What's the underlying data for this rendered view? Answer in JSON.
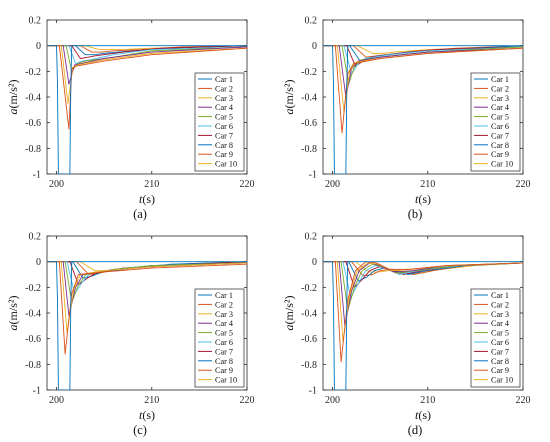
{
  "panels": [
    {
      "label": "(a)",
      "variant": "a"
    },
    {
      "label": "(b)",
      "variant": "b"
    },
    {
      "label": "(c)",
      "variant": "c"
    },
    {
      "label": "(d)",
      "variant": "d"
    }
  ],
  "chart_data": [
    {
      "type": "line",
      "panel": "(a)",
      "xlabel": "t(s)",
      "ylabel": "a(m/s²)",
      "xlim": [
        199,
        220
      ],
      "ylim": [
        -1,
        0.2
      ],
      "xticks": [
        200,
        210,
        220
      ],
      "yticks": [
        0.2,
        0,
        -0.2,
        -0.4,
        -0.6,
        -0.8,
        -1
      ],
      "grid": false,
      "legend_position": "bottom-right",
      "series": [
        {
          "name": "Car 1",
          "x": [
            199,
            200,
            200.1,
            200.2,
            201.4,
            201.5,
            201.6,
            220
          ],
          "y": [
            0,
            0,
            -0.3,
            -1,
            -1,
            -0.3,
            0,
            0
          ]
        },
        {
          "name": "Car 2",
          "x": [
            199,
            200.3,
            201.3,
            201.6,
            202,
            205,
            210,
            220
          ],
          "y": [
            0,
            0,
            -0.65,
            -0.18,
            -0.16,
            -0.12,
            -0.07,
            -0.02
          ]
        },
        {
          "name": "Car 3",
          "x": [
            199,
            200.5,
            201.2,
            201.7,
            202.2,
            205,
            210,
            220
          ],
          "y": [
            0,
            0,
            -0.45,
            -0.17,
            -0.15,
            -0.11,
            -0.06,
            -0.02
          ]
        },
        {
          "name": "Car 4",
          "x": [
            199,
            200.7,
            201.3,
            201.9,
            202.5,
            205,
            210,
            220
          ],
          "y": [
            0,
            0,
            -0.3,
            -0.15,
            -0.14,
            -0.1,
            -0.05,
            -0.01
          ]
        },
        {
          "name": "Car 5",
          "x": [
            199,
            201,
            201.6,
            202.2,
            203,
            206,
            210,
            220
          ],
          "y": [
            0,
            0,
            -0.2,
            -0.14,
            -0.12,
            -0.09,
            -0.04,
            -0.01
          ]
        },
        {
          "name": "Car 6",
          "x": [
            199,
            201.3,
            202,
            202.7,
            203.5,
            206,
            210,
            220
          ],
          "y": [
            0,
            0,
            -0.14,
            -0.12,
            -0.11,
            -0.07,
            -0.03,
            -0.01
          ]
        },
        {
          "name": "Car 7",
          "x": [
            199,
            201.6,
            202.5,
            203.3,
            204,
            207,
            211,
            220
          ],
          "y": [
            0,
            0,
            -0.1,
            -0.09,
            -0.08,
            -0.05,
            -0.02,
            0
          ]
        },
        {
          "name": "Car 8",
          "x": [
            199,
            202,
            203,
            204,
            205,
            208,
            212,
            220
          ],
          "y": [
            0,
            0,
            -0.07,
            -0.07,
            -0.06,
            -0.04,
            -0.02,
            0
          ]
        },
        {
          "name": "Car 9",
          "x": [
            199,
            202.5,
            203.7,
            204.7,
            206,
            209,
            213,
            220
          ],
          "y": [
            0,
            0,
            -0.05,
            -0.05,
            -0.04,
            -0.03,
            -0.01,
            0
          ]
        },
        {
          "name": "Car 10",
          "x": [
            199,
            203,
            204.5,
            205.5,
            207,
            210,
            214,
            220
          ],
          "y": [
            0,
            0,
            -0.03,
            -0.03,
            -0.03,
            -0.02,
            -0.01,
            0
          ]
        }
      ]
    },
    {
      "type": "line",
      "panel": "(b)",
      "xlabel": "t(s)",
      "ylabel": "a(m/s²)",
      "xlim": [
        199,
        220
      ],
      "ylim": [
        -1,
        0.2
      ],
      "xticks": [
        200,
        210,
        220
      ],
      "yticks": [
        0.2,
        0,
        -0.2,
        -0.4,
        -0.6,
        -0.8,
        -1
      ],
      "grid": false,
      "legend_position": "bottom-right",
      "series": [
        {
          "name": "Car 1",
          "x": [
            199,
            200,
            200.1,
            200.2,
            201.4,
            201.5,
            201.6,
            220
          ],
          "y": [
            0,
            0,
            -0.3,
            -1,
            -1,
            -0.3,
            0,
            0
          ]
        },
        {
          "name": "Car 2",
          "x": [
            199,
            200.3,
            201,
            201.6,
            202.2,
            205,
            210,
            220
          ],
          "y": [
            0,
            0,
            -0.68,
            -0.22,
            -0.14,
            -0.1,
            -0.06,
            -0.02
          ]
        },
        {
          "name": "Car 3",
          "x": [
            199,
            200.5,
            201.2,
            201.8,
            202.4,
            205,
            210,
            220
          ],
          "y": [
            0,
            0,
            -0.52,
            -0.2,
            -0.13,
            -0.1,
            -0.06,
            -0.02
          ]
        },
        {
          "name": "Car 4",
          "x": [
            199,
            200.7,
            201.4,
            202,
            202.7,
            205,
            210,
            220
          ],
          "y": [
            0,
            0,
            -0.4,
            -0.18,
            -0.12,
            -0.09,
            -0.05,
            -0.02
          ]
        },
        {
          "name": "Car 5",
          "x": [
            199,
            201,
            201.7,
            202.3,
            203,
            206,
            210,
            220
          ],
          "y": [
            0,
            0,
            -0.3,
            -0.16,
            -0.11,
            -0.08,
            -0.05,
            -0.01
          ]
        },
        {
          "name": "Car 6",
          "x": [
            199,
            201.2,
            202,
            202.7,
            203.4,
            206,
            210,
            220
          ],
          "y": [
            0,
            0,
            -0.22,
            -0.14,
            -0.1,
            -0.07,
            -0.04,
            -0.01
          ]
        },
        {
          "name": "Car 7",
          "x": [
            199,
            201.5,
            202.4,
            203.2,
            204,
            207,
            211,
            220
          ],
          "y": [
            0,
            0,
            -0.16,
            -0.12,
            -0.09,
            -0.06,
            -0.03,
            -0.01
          ]
        },
        {
          "name": "Car 8",
          "x": [
            199,
            201.8,
            202.9,
            203.8,
            204.8,
            208,
            212,
            220
          ],
          "y": [
            0,
            0,
            -0.12,
            -0.1,
            -0.08,
            -0.05,
            -0.03,
            0
          ]
        },
        {
          "name": "Car 9",
          "x": [
            199,
            202.2,
            203.5,
            204.5,
            205.6,
            209,
            213,
            220
          ],
          "y": [
            0,
            0,
            -0.09,
            -0.08,
            -0.07,
            -0.04,
            -0.02,
            0
          ]
        },
        {
          "name": "Car 10",
          "x": [
            199,
            202.6,
            204.2,
            205.3,
            206.5,
            210,
            214,
            220
          ],
          "y": [
            0,
            0,
            -0.06,
            -0.06,
            -0.05,
            -0.03,
            -0.02,
            0
          ]
        }
      ]
    },
    {
      "type": "line",
      "panel": "(c)",
      "xlabel": "t(s)",
      "ylabel": "a(m/s²)",
      "xlim": [
        199,
        220
      ],
      "ylim": [
        -1,
        0.2
      ],
      "xticks": [
        200,
        210,
        220
      ],
      "yticks": [
        0.2,
        0,
        -0.2,
        -0.4,
        -0.6,
        -0.8,
        -1
      ],
      "grid": false,
      "legend_position": "bottom-right",
      "series": [
        {
          "name": "Car 1",
          "x": [
            199,
            200,
            200.1,
            200.2,
            201.4,
            201.5,
            201.6,
            220
          ],
          "y": [
            0,
            0,
            -0.3,
            -1,
            -1,
            -0.3,
            0,
            0
          ]
        },
        {
          "name": "Car 2",
          "x": [
            199,
            200.3,
            200.9,
            201.6,
            202.3,
            205,
            210,
            220
          ],
          "y": [
            0,
            0,
            -0.72,
            -0.25,
            -0.1,
            -0.08,
            -0.05,
            -0.02
          ]
        },
        {
          "name": "Car 3",
          "x": [
            199,
            200.5,
            201.1,
            201.8,
            202.5,
            205,
            210,
            220
          ],
          "y": [
            0,
            0,
            -0.55,
            -0.22,
            -0.1,
            -0.07,
            -0.04,
            -0.01
          ]
        },
        {
          "name": "Car 4",
          "x": [
            199,
            200.7,
            201.3,
            202,
            202.8,
            205,
            210,
            220
          ],
          "y": [
            0,
            0,
            -0.42,
            -0.2,
            -0.1,
            -0.07,
            -0.04,
            -0.01
          ]
        },
        {
          "name": "Car 5",
          "x": [
            199,
            200.9,
            201.6,
            202.3,
            203.1,
            206,
            210,
            220
          ],
          "y": [
            0,
            0,
            -0.32,
            -0.18,
            -0.1,
            -0.06,
            -0.03,
            -0.01
          ]
        },
        {
          "name": "Car 6",
          "x": [
            199,
            201.1,
            201.9,
            202.7,
            203.5,
            206,
            210,
            220
          ],
          "y": [
            0,
            0,
            -0.25,
            -0.16,
            -0.09,
            -0.06,
            -0.03,
            -0.01
          ]
        },
        {
          "name": "Car 7",
          "x": [
            199,
            201.4,
            202.3,
            203.2,
            204.1,
            207,
            211,
            220
          ],
          "y": [
            0,
            0,
            -0.18,
            -0.13,
            -0.09,
            -0.05,
            -0.03,
            0
          ]
        },
        {
          "name": "Car 8",
          "x": [
            199,
            201.7,
            202.8,
            203.8,
            204.8,
            208,
            212,
            220
          ],
          "y": [
            0,
            0,
            -0.13,
            -0.11,
            -0.08,
            -0.05,
            -0.02,
            0
          ]
        },
        {
          "name": "Car 9",
          "x": [
            199,
            202.1,
            203.4,
            204.5,
            205.6,
            209,
            213,
            220
          ],
          "y": [
            0,
            0,
            -0.1,
            -0.09,
            -0.07,
            -0.04,
            -0.02,
            0
          ]
        },
        {
          "name": "Car 10",
          "x": [
            199,
            202.5,
            204,
            205.3,
            206.5,
            210,
            214,
            220
          ],
          "y": [
            0,
            0,
            -0.07,
            -0.07,
            -0.06,
            -0.03,
            -0.02,
            0
          ]
        }
      ]
    },
    {
      "type": "line",
      "panel": "(d)",
      "xlabel": "t(s)",
      "ylabel": "a(m/s²)",
      "xlim": [
        199,
        220
      ],
      "ylim": [
        -1,
        0.2
      ],
      "xticks": [
        200,
        210,
        220
      ],
      "yticks": [
        0.2,
        0,
        -0.2,
        -0.4,
        -0.6,
        -0.8,
        -1
      ],
      "grid": false,
      "legend_position": "bottom-right",
      "series": [
        {
          "name": "Car 1",
          "x": [
            199,
            200,
            200.1,
            200.2,
            201.4,
            201.5,
            201.6,
            220
          ],
          "y": [
            0,
            0,
            -0.3,
            -1,
            -1,
            -0.3,
            0,
            0
          ]
        },
        {
          "name": "Car 2",
          "x": [
            199,
            200.3,
            200.9,
            201.6,
            202.4,
            203.5,
            204.6,
            206,
            208,
            212,
            220
          ],
          "y": [
            0,
            0,
            -0.78,
            -0.3,
            -0.07,
            0,
            -0.01,
            -0.06,
            -0.06,
            -0.03,
            -0.01
          ]
        },
        {
          "name": "Car 3",
          "x": [
            199,
            200.5,
            201.1,
            201.8,
            202.6,
            203.7,
            204.8,
            206.2,
            208.2,
            212,
            220
          ],
          "y": [
            0,
            0,
            -0.62,
            -0.26,
            -0.07,
            -0.01,
            -0.02,
            -0.07,
            -0.06,
            -0.03,
            -0.01
          ]
        },
        {
          "name": "Car 4",
          "x": [
            199,
            200.7,
            201.3,
            202,
            202.8,
            203.9,
            205,
            206.4,
            208.4,
            212,
            220
          ],
          "y": [
            0,
            0,
            -0.5,
            -0.23,
            -0.07,
            -0.01,
            -0.03,
            -0.08,
            -0.07,
            -0.03,
            -0.01
          ]
        },
        {
          "name": "Car 5",
          "x": [
            199,
            200.9,
            201.6,
            202.3,
            203.1,
            204.2,
            205.3,
            206.7,
            208.7,
            213,
            220
          ],
          "y": [
            0,
            0,
            -0.38,
            -0.2,
            -0.07,
            -0.02,
            -0.04,
            -0.09,
            -0.07,
            -0.03,
            -0.01
          ]
        },
        {
          "name": "Car 6",
          "x": [
            199,
            201.1,
            201.9,
            202.7,
            203.5,
            204.5,
            205.6,
            207,
            209,
            213,
            220
          ],
          "y": [
            0,
            0,
            -0.28,
            -0.17,
            -0.07,
            -0.03,
            -0.05,
            -0.1,
            -0.07,
            -0.03,
            -0.01
          ]
        },
        {
          "name": "Car 7",
          "x": [
            199,
            201.4,
            202.3,
            203.1,
            203.9,
            204.9,
            206,
            207.4,
            209.4,
            213,
            220
          ],
          "y": [
            0,
            0,
            -0.2,
            -0.14,
            -0.07,
            -0.04,
            -0.06,
            -0.1,
            -0.07,
            -0.03,
            -0.01
          ]
        },
        {
          "name": "Car 8",
          "x": [
            199,
            201.7,
            202.7,
            203.6,
            204.4,
            205.4,
            206.5,
            207.9,
            209.9,
            214,
            220
          ],
          "y": [
            0,
            0,
            -0.15,
            -0.12,
            -0.07,
            -0.05,
            -0.07,
            -0.1,
            -0.07,
            -0.03,
            -0.01
          ]
        },
        {
          "name": "Car 9",
          "x": [
            199,
            202,
            203.2,
            204.2,
            205,
            206,
            207.1,
            208.5,
            210.5,
            214,
            220
          ],
          "y": [
            0,
            0,
            -0.11,
            -0.1,
            -0.07,
            -0.06,
            -0.08,
            -0.1,
            -0.07,
            -0.03,
            -0.01
          ]
        },
        {
          "name": "Car 10",
          "x": [
            199,
            202.4,
            203.8,
            204.9,
            205.8,
            206.8,
            207.9,
            209.3,
            211.3,
            215,
            220
          ],
          "y": [
            0,
            0,
            -0.08,
            -0.08,
            -0.07,
            -0.07,
            -0.08,
            -0.09,
            -0.06,
            -0.03,
            -0.01
          ]
        }
      ]
    }
  ],
  "colors": [
    "#0072BD",
    "#D95319",
    "#EDB120",
    "#7E2F8E",
    "#77AC30",
    "#4DBEEE",
    "#A2142F",
    "#0072BD",
    "#D95319",
    "#EDB120"
  ]
}
